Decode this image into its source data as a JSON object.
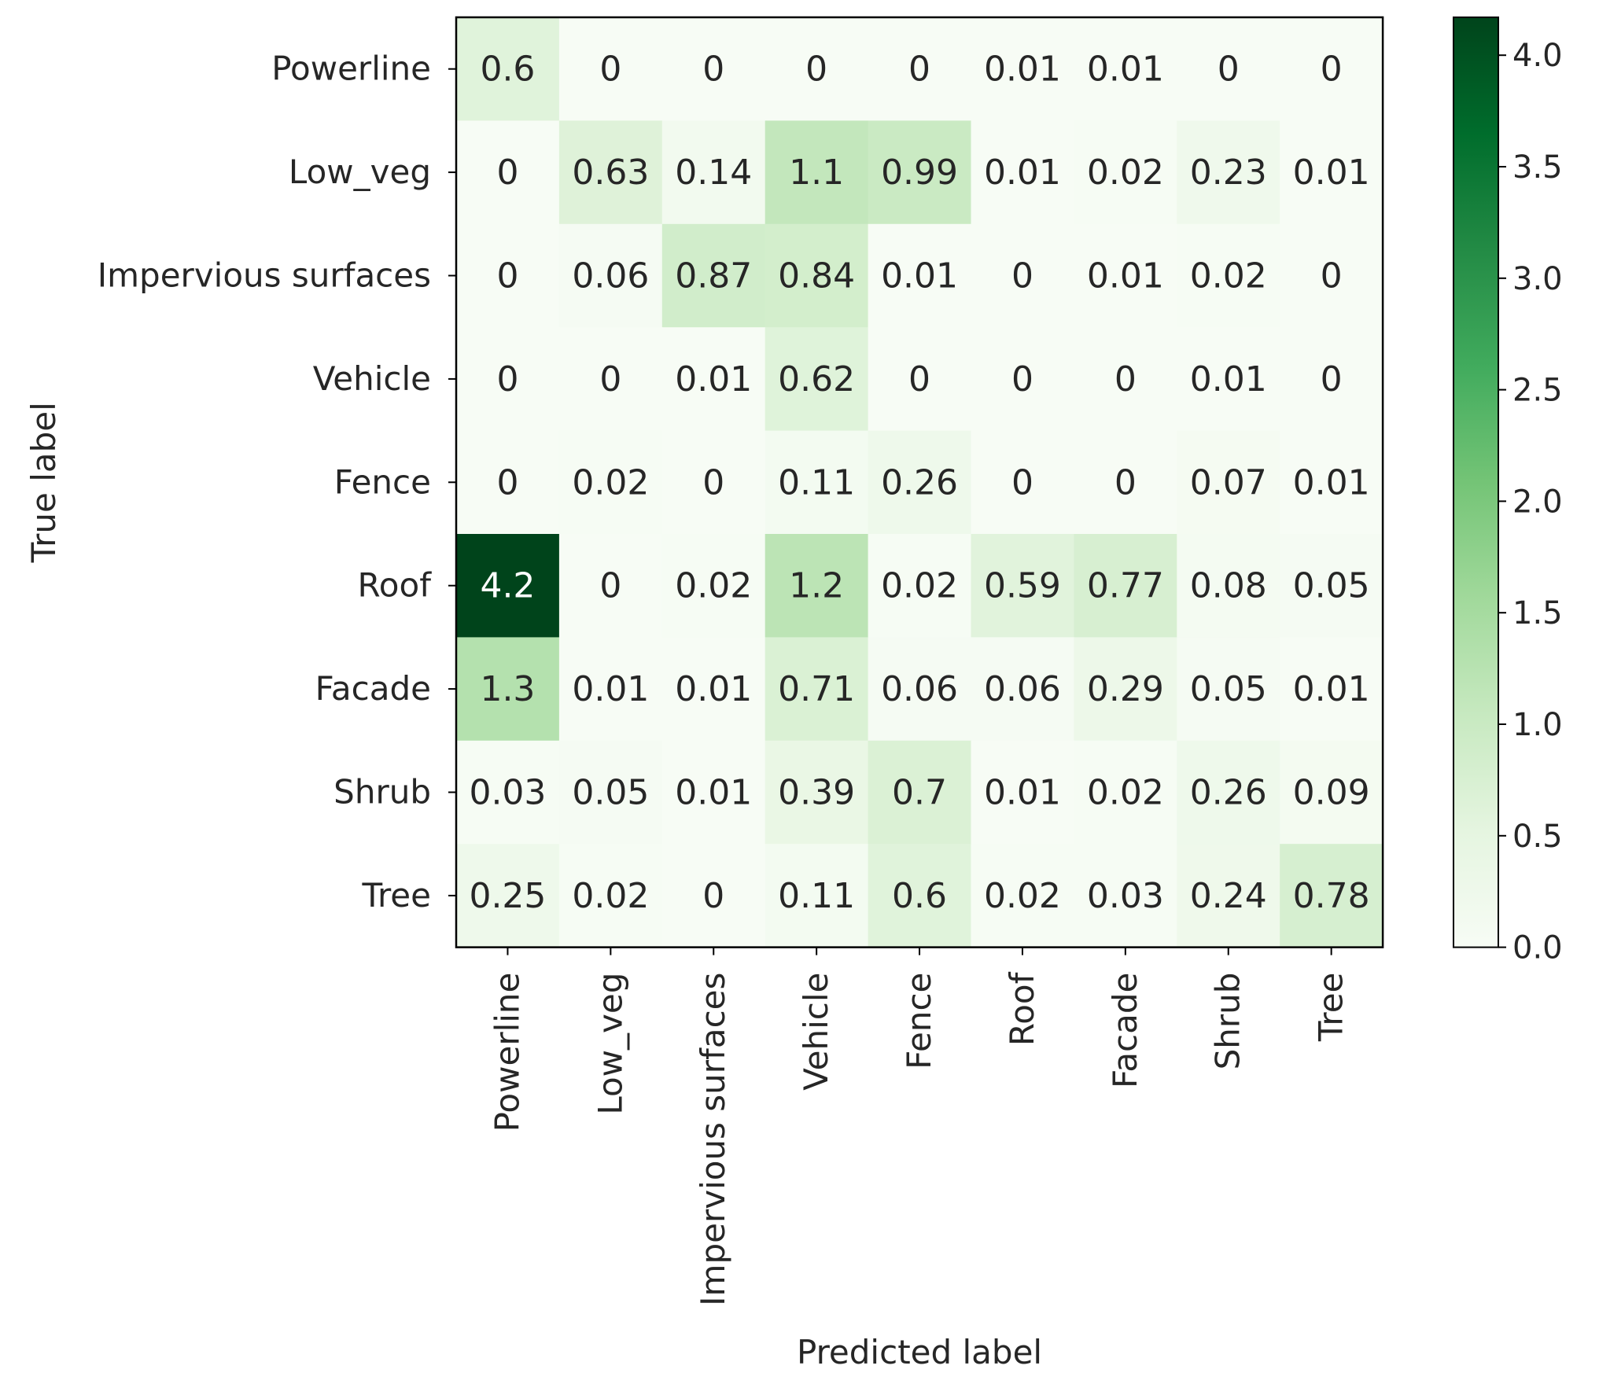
{
  "chart_data": {
    "type": "heatmap",
    "title": "",
    "xlabel": "Predicted label",
    "ylabel": "True label",
    "x_categories": [
      "Powerline",
      "Low_veg",
      "Impervious surfaces",
      "Vehicle",
      "Fence",
      "Roof",
      "Facade",
      "Shrub",
      "Tree"
    ],
    "y_categories": [
      "Powerline",
      "Low_veg",
      "Impervious surfaces",
      "Vehicle",
      "Fence",
      "Roof",
      "Facade",
      "Shrub",
      "Tree"
    ],
    "values": [
      [
        0.6,
        0,
        0,
        0,
        0,
        0.01,
        0.01,
        0,
        0
      ],
      [
        0,
        0.63,
        0.14,
        1.1,
        0.99,
        0.01,
        0.02,
        0.23,
        0.01
      ],
      [
        0,
        0.06,
        0.87,
        0.84,
        0.01,
        0,
        0.01,
        0.02,
        0
      ],
      [
        0,
        0,
        0.01,
        0.62,
        0,
        0,
        0,
        0.01,
        0
      ],
      [
        0,
        0.02,
        0,
        0.11,
        0.26,
        0,
        0,
        0.07,
        0.01
      ],
      [
        4.2,
        0,
        0.02,
        1.2,
        0.02,
        0.59,
        0.77,
        0.08,
        0.05
      ],
      [
        1.3,
        0.01,
        0.01,
        0.71,
        0.06,
        0.06,
        0.29,
        0.05,
        0.01
      ],
      [
        0.03,
        0.05,
        0.01,
        0.39,
        0.7,
        0.01,
        0.02,
        0.26,
        0.09
      ],
      [
        0.25,
        0.02,
        0,
        0.11,
        0.6,
        0.02,
        0.03,
        0.24,
        0.78
      ]
    ],
    "colormap": "Greens",
    "colorbar": {
      "range": [
        0,
        4.17
      ],
      "ticks": [
        0.0,
        0.5,
        1.0,
        1.5,
        2.0,
        2.5,
        3.0,
        3.5,
        4.0
      ],
      "tick_labels": [
        "0.0",
        "0.5",
        "1.0",
        "1.5",
        "2.0",
        "2.5",
        "3.0",
        "3.5",
        "4.0"
      ]
    },
    "grid": false
  }
}
